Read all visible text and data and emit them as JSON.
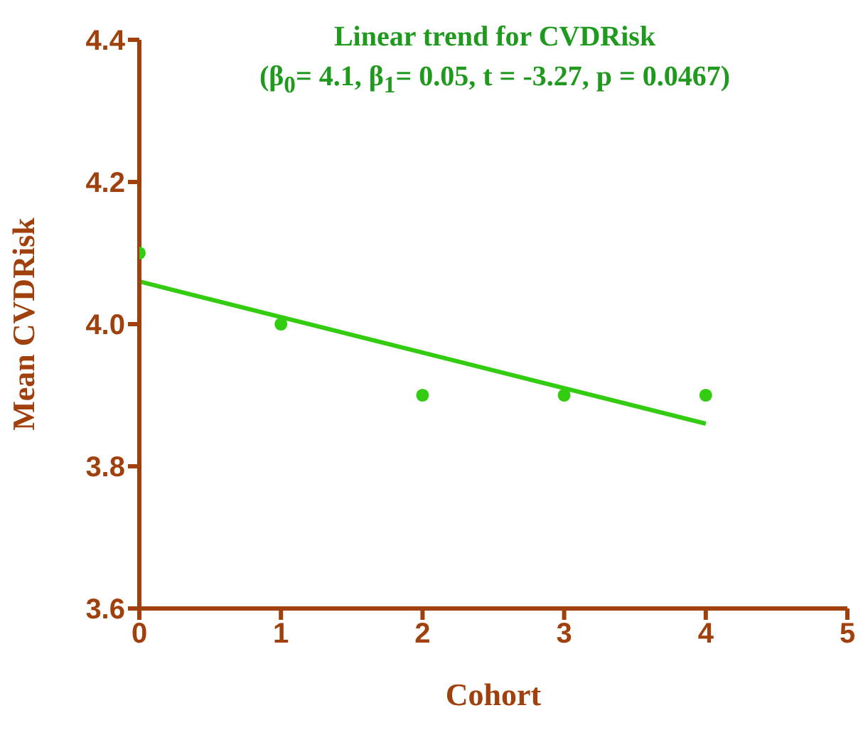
{
  "chart_data": {
    "type": "scatter",
    "title": "Linear trend for CVDRisk",
    "subtitle": "(β$_{0}$= 4.1, β$_{1}$= 0.05, t = -3.27, p = 0.0467)",
    "xlabel": "Cohort",
    "ylabel": "Mean CVDRisk",
    "x": [
      0,
      1,
      2,
      3,
      4
    ],
    "series": [
      {
        "color": "#33cc11",
        "marker": "circle",
        "values": [
          4.1,
          4.0,
          3.9,
          3.9,
          3.9
        ]
      },
      {
        "type": "line",
        "color": "#33cc11",
        "marker": "none",
        "x": [
          0,
          4
        ],
        "values": [
          4.06,
          3.86
        ]
      }
    ],
    "xlim": [
      0,
      5
    ],
    "xticks": [
      0,
      1,
      2,
      3,
      4,
      5
    ],
    "ylim": [
      3.6,
      4.4
    ],
    "yticks": [
      3.6,
      3.8,
      {
        "value": 4,
        "label": "4.0"
      },
      4.2,
      4.4
    ],
    "grid": false,
    "legend": false
  }
}
